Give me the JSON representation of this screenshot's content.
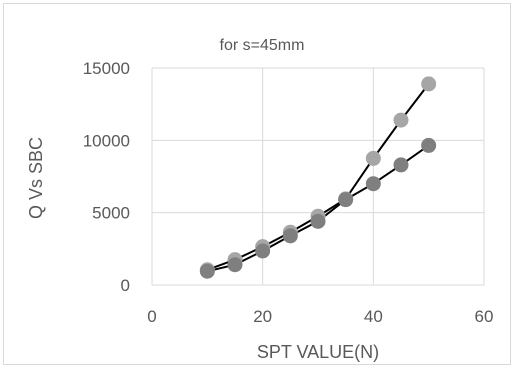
{
  "chart_data": {
    "type": "scatter",
    "title": "for s=45mm",
    "xlabel": "SPT VALUE(N)",
    "ylabel": "Q Vs SBC",
    "xlim": [
      0,
      60
    ],
    "ylim": [
      0,
      15000
    ],
    "x_ticks": [
      0,
      20,
      40,
      60
    ],
    "y_ticks": [
      0,
      5000,
      10000,
      15000
    ],
    "grid": true,
    "legend": "none",
    "series": [
      {
        "color": "#a6a6a6",
        "points": [
          {
            "x": 10,
            "y": 1050
          },
          {
            "x": 15,
            "y": 1750
          },
          {
            "x": 20,
            "y": 2650
          },
          {
            "x": 25,
            "y": 3650
          },
          {
            "x": 30,
            "y": 4750
          },
          {
            "x": 35,
            "y": 5950
          },
          {
            "x": 40,
            "y": 8750
          },
          {
            "x": 45,
            "y": 11400
          },
          {
            "x": 50,
            "y": 13900
          }
        ]
      },
      {
        "color": "#7f7f7f",
        "points": [
          {
            "x": 10,
            "y": 950
          },
          {
            "x": 15,
            "y": 1400
          },
          {
            "x": 20,
            "y": 2350
          },
          {
            "x": 25,
            "y": 3400
          },
          {
            "x": 30,
            "y": 4400
          },
          {
            "x": 35,
            "y": 5900
          },
          {
            "x": 40,
            "y": 7000
          },
          {
            "x": 45,
            "y": 8300
          },
          {
            "x": 50,
            "y": 9650
          }
        ]
      }
    ],
    "colors": {
      "grid": "#d9d9d9",
      "line": "#000000",
      "text": "#595959"
    }
  }
}
